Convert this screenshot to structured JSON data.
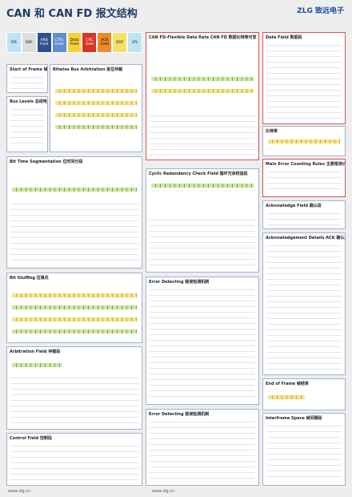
{
  "header": {
    "title": "CAN 和 CAN FD 报文结构",
    "logo": "ZLG",
    "brand": "致远电子"
  },
  "fields": [
    "IFS",
    "SOF",
    "ARB Field",
    "CTRL Field",
    "Data Field",
    "CRC Field",
    "ACK Field",
    "EOF",
    "IFS"
  ],
  "sections": [
    "Start of Frame 帧起始",
    "Bitwise Bus Arbitration 逐位仲裁",
    "Bus Levels 总线电平",
    "Bit Time Segmentation 位时间分段",
    "Bit Stuffing 位填充",
    "Arbitration Field 仲裁段",
    "Control Field 控制段",
    "CAN FD-Flexible Data Rate CAN FD 数据比特率可变",
    "Cyclic Redundancy Check Field 循环冗余校验段",
    "Error Detecting 错误检测机制",
    "Error Detecting 错误检测机制",
    "Data Field 数据段",
    "比特率",
    "Main Error Counting Rules 主要错误计数规则",
    "Acknowledge Field 确认段",
    "Acknowledgement Details ACK 确认段详情",
    "End of Frame 帧结束",
    "Interframe Space 帧间隔段"
  ],
  "footer": [
    "www.zlg.cn",
    "www.zlg.cn"
  ]
}
